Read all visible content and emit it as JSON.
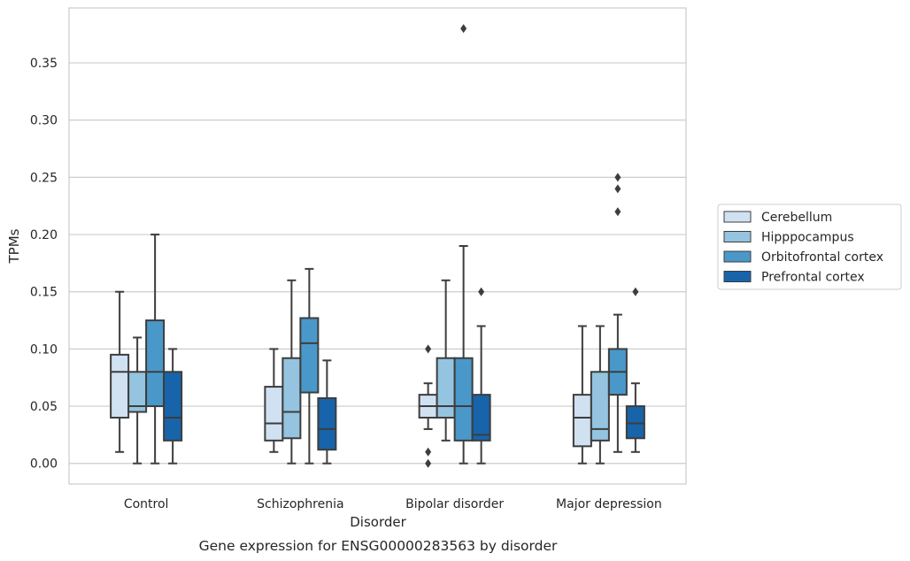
{
  "chart_data": {
    "type": "boxplot",
    "caption": "Gene expression for ENSG00000283563 by disorder",
    "xlabel": "Disorder",
    "ylabel": "TPMs",
    "ylim": [
      -0.018,
      0.398
    ],
    "yticks": [
      0.0,
      0.05,
      0.1,
      0.15,
      0.2,
      0.25,
      0.3,
      0.35
    ],
    "ytick_labels": [
      "0.00",
      "0.05",
      "0.10",
      "0.15",
      "0.20",
      "0.25",
      "0.30",
      "0.35"
    ],
    "grid": "horizontal",
    "legend_position": "outside right",
    "categories": [
      "Control",
      "Schizophrenia",
      "Bipolar disorder",
      "Major depression"
    ],
    "series": [
      {
        "name": "Cerebellum",
        "color": "#d0e1f2",
        "boxes": [
          {
            "whislo": 0.01,
            "q1": 0.04,
            "med": 0.08,
            "q3": 0.095,
            "whishi": 0.15,
            "fliers": []
          },
          {
            "whislo": 0.01,
            "q1": 0.02,
            "med": 0.035,
            "q3": 0.067,
            "whishi": 0.1,
            "fliers": []
          },
          {
            "whislo": 0.03,
            "q1": 0.04,
            "med": 0.05,
            "q3": 0.06,
            "whishi": 0.07,
            "fliers": [
              0.1,
              0.01,
              0.0
            ]
          },
          {
            "whislo": 0.0,
            "q1": 0.015,
            "med": 0.04,
            "q3": 0.06,
            "whishi": 0.12,
            "fliers": []
          }
        ]
      },
      {
        "name": "Hipppocampus",
        "color": "#94c4df",
        "boxes": [
          {
            "whislo": 0.0,
            "q1": 0.045,
            "med": 0.05,
            "q3": 0.08,
            "whishi": 0.11,
            "fliers": []
          },
          {
            "whislo": 0.0,
            "q1": 0.022,
            "med": 0.045,
            "q3": 0.092,
            "whishi": 0.16,
            "fliers": []
          },
          {
            "whislo": 0.02,
            "q1": 0.04,
            "med": 0.05,
            "q3": 0.092,
            "whishi": 0.16,
            "fliers": []
          },
          {
            "whislo": 0.0,
            "q1": 0.02,
            "med": 0.03,
            "q3": 0.08,
            "whishi": 0.12,
            "fliers": []
          }
        ]
      },
      {
        "name": "Orbitofrontal cortex",
        "color": "#4a98c9",
        "boxes": [
          {
            "whislo": 0.0,
            "q1": 0.05,
            "med": 0.08,
            "q3": 0.125,
            "whishi": 0.2,
            "fliers": []
          },
          {
            "whislo": 0.0,
            "q1": 0.062,
            "med": 0.105,
            "q3": 0.127,
            "whishi": 0.17,
            "fliers": []
          },
          {
            "whislo": 0.0,
            "q1": 0.02,
            "med": 0.05,
            "q3": 0.092,
            "whishi": 0.19,
            "fliers": [
              0.38
            ]
          },
          {
            "whislo": 0.01,
            "q1": 0.06,
            "med": 0.08,
            "q3": 0.1,
            "whishi": 0.13,
            "fliers": [
              0.22,
              0.24,
              0.25
            ]
          }
        ]
      },
      {
        "name": "Prefrontal cortex",
        "color": "#1764ab",
        "boxes": [
          {
            "whislo": 0.0,
            "q1": 0.02,
            "med": 0.04,
            "q3": 0.08,
            "whishi": 0.1,
            "fliers": []
          },
          {
            "whislo": 0.0,
            "q1": 0.012,
            "med": 0.03,
            "q3": 0.057,
            "whishi": 0.09,
            "fliers": []
          },
          {
            "whislo": 0.0,
            "q1": 0.02,
            "med": 0.025,
            "q3": 0.06,
            "whishi": 0.12,
            "fliers": [
              0.15
            ]
          },
          {
            "whislo": 0.01,
            "q1": 0.022,
            "med": 0.035,
            "q3": 0.05,
            "whishi": 0.07,
            "fliers": [
              0.15
            ]
          }
        ]
      }
    ]
  }
}
